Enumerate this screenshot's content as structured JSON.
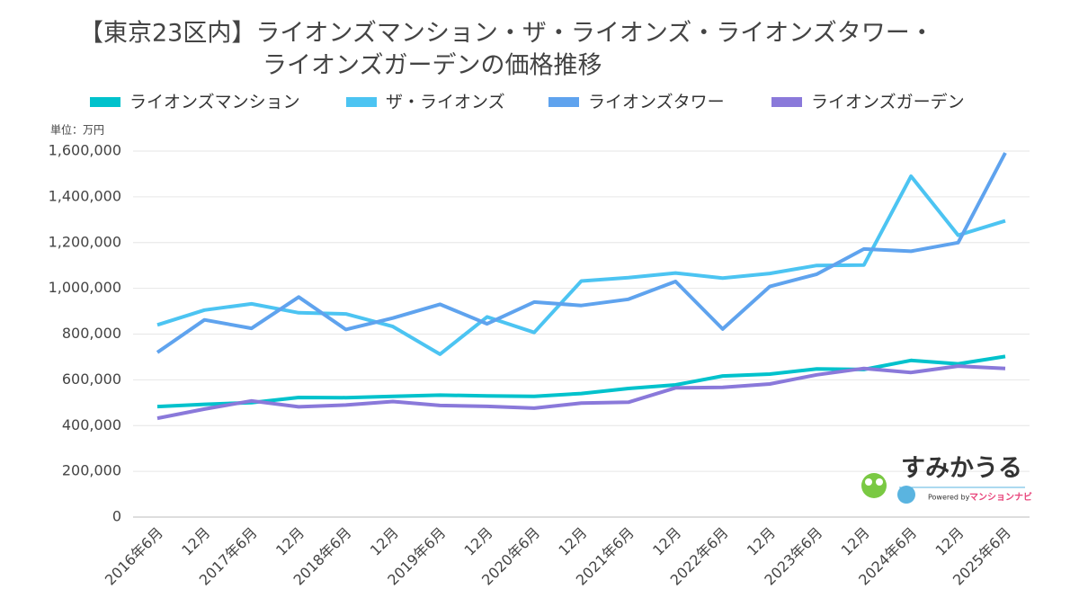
{
  "chart_data": {
    "type": "line",
    "title": [
      "【東京23区内】ライオンズマンション・ザ・ライオンズ・ライオンズタワー・",
      "ライオンズガーデンの価格推移"
    ],
    "y_unit_label": "単位：万円",
    "categories": [
      "2016年6月",
      "12月",
      "2017年6月",
      "12月",
      "2018年6月",
      "12月",
      "2019年6月",
      "12月",
      "2020年6月",
      "12月",
      "2021年6月",
      "12月",
      "2022年6月",
      "12月",
      "2023年6月",
      "12月",
      "2024年6月",
      "12月",
      "2025年6月"
    ],
    "series": [
      {
        "name": "ライオンズマンション",
        "color": "#00c2cc",
        "values": [
          483000,
          493000,
          500000,
          523000,
          522000,
          528000,
          533000,
          530000,
          528000,
          540000,
          562000,
          578000,
          617000,
          625000,
          648000,
          645000,
          685000,
          670000,
          702000
        ]
      },
      {
        "name": "ザ・ライオンズ",
        "color": "#4cc4f2",
        "values": [
          840000,
          905000,
          932000,
          893000,
          888000,
          833000,
          712000,
          875000,
          807000,
          1032000,
          1047000,
          1067000,
          1045000,
          1065000,
          1100000,
          1102000,
          1490000,
          1232000,
          1295000
        ]
      },
      {
        "name": "ライオンズタワー",
        "color": "#5fa3ee",
        "values": [
          720000,
          862000,
          825000,
          962000,
          820000,
          870000,
          930000,
          845000,
          940000,
          925000,
          952000,
          1030000,
          822000,
          1008000,
          1062000,
          1172000,
          1162000,
          1200000,
          1592000
        ]
      },
      {
        "name": "ライオンズガーデン",
        "color": "#8a79da",
        "values": [
          432000,
          472000,
          508000,
          482000,
          490000,
          505000,
          488000,
          484000,
          476000,
          498000,
          502000,
          565000,
          567000,
          582000,
          622000,
          650000,
          632000,
          660000,
          650000
        ]
      }
    ],
    "ylim": [
      0,
      1600000
    ],
    "yticks": [
      0,
      {
        "value": 200000,
        "label": "200,000"
      },
      {
        "value": 400000,
        "label": "400,000"
      },
      {
        "value": 600000,
        "label": "600,000"
      },
      {
        "value": 800000,
        "label": "800,000"
      },
      {
        "value": 1000000,
        "label": "1,000,000"
      },
      {
        "value": 1200000,
        "label": "1,200,000"
      },
      {
        "value": 1400000,
        "label": "1,400,000"
      },
      {
        "value": 1600000,
        "label": "1,600,000"
      }
    ],
    "grid": true,
    "legend": "top"
  },
  "logo": {
    "name": "すみかうる",
    "powered": "Powered by",
    "brand": "マンションナビ"
  }
}
